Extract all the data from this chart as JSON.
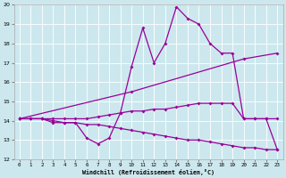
{
  "xlabel": "Windchill (Refroidissement éolien,°C)",
  "bg_color": "#cce8ee",
  "line_color": "#990099",
  "grid_color": "#aaddcc",
  "xlim": [
    -0.5,
    23.5
  ],
  "ylim": [
    12,
    20
  ],
  "xticks": [
    0,
    1,
    2,
    3,
    4,
    5,
    6,
    7,
    8,
    9,
    10,
    11,
    12,
    13,
    14,
    15,
    16,
    17,
    18,
    19,
    20,
    21,
    22,
    23
  ],
  "yticks": [
    12,
    13,
    14,
    15,
    16,
    17,
    18,
    19,
    20
  ],
  "series": [
    {
      "x": [
        0,
        1,
        2,
        3,
        4,
        5,
        6,
        7,
        8,
        9,
        10,
        11,
        12,
        13,
        14,
        15,
        16,
        17,
        18,
        19,
        20,
        21,
        22,
        23
      ],
      "y": [
        14.1,
        14.1,
        14.1,
        13.9,
        13.9,
        13.9,
        13.1,
        12.8,
        13.1,
        14.4,
        16.8,
        18.8,
        17.0,
        18.0,
        19.9,
        19.3,
        19.0,
        18.0,
        17.5,
        17.5,
        14.1,
        14.1,
        14.1,
        12.5
      ]
    },
    {
      "x": [
        0,
        10,
        20,
        23
      ],
      "y": [
        14.1,
        15.5,
        17.2,
        17.5
      ]
    },
    {
      "x": [
        0,
        1,
        2,
        3,
        4,
        5,
        6,
        7,
        8,
        9,
        10,
        11,
        12,
        13,
        14,
        15,
        16,
        17,
        18,
        19,
        20,
        21,
        22,
        23
      ],
      "y": [
        14.1,
        14.1,
        14.1,
        14.1,
        14.1,
        14.1,
        14.1,
        14.2,
        14.3,
        14.4,
        14.5,
        14.5,
        14.6,
        14.6,
        14.7,
        14.8,
        14.9,
        14.9,
        14.9,
        14.9,
        14.1,
        14.1,
        14.1,
        14.1
      ]
    },
    {
      "x": [
        0,
        1,
        2,
        3,
        4,
        5,
        6,
        7,
        8,
        9,
        10,
        11,
        12,
        13,
        14,
        15,
        16,
        17,
        18,
        19,
        20,
        21,
        22,
        23
      ],
      "y": [
        14.1,
        14.1,
        14.1,
        14.0,
        13.9,
        13.9,
        13.8,
        13.8,
        13.7,
        13.6,
        13.5,
        13.4,
        13.3,
        13.2,
        13.1,
        13.0,
        13.0,
        12.9,
        12.8,
        12.7,
        12.6,
        12.6,
        12.5,
        12.5
      ]
    }
  ]
}
